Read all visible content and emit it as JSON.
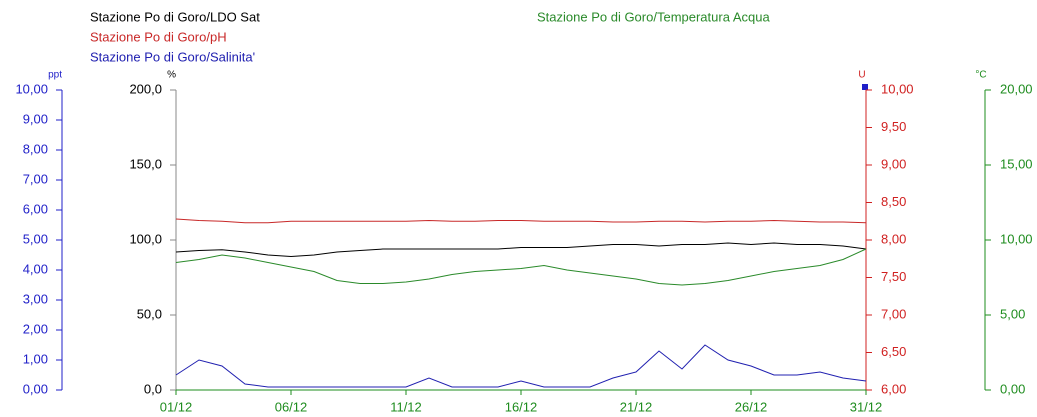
{
  "chart_data": {
    "type": "line",
    "x": [
      1,
      2,
      3,
      4,
      5,
      6,
      7,
      8,
      9,
      10,
      11,
      12,
      13,
      14,
      15,
      16,
      17,
      18,
      19,
      20,
      21,
      22,
      23,
      24,
      25,
      26,
      27,
      28,
      29,
      30,
      31
    ],
    "xlim": [
      1,
      31
    ],
    "xticks": [
      {
        "value": 1,
        "label": "01/12"
      },
      {
        "value": 6,
        "label": "06/12"
      },
      {
        "value": 11,
        "label": "11/12"
      },
      {
        "value": 16,
        "label": "16/12"
      },
      {
        "value": 21,
        "label": "21/12"
      },
      {
        "value": 26,
        "label": "26/12"
      },
      {
        "value": 31,
        "label": "31/12"
      }
    ],
    "axes": [
      {
        "id": "sal",
        "unit": "ppt",
        "color": "#1f1fc8",
        "lim": [
          0,
          10
        ],
        "ticks": [
          {
            "value": 0,
            "label": "0,00"
          },
          {
            "value": 1,
            "label": "1,00"
          },
          {
            "value": 2,
            "label": "2,00"
          },
          {
            "value": 3,
            "label": "3,00"
          },
          {
            "value": 4,
            "label": "4,00"
          },
          {
            "value": 5,
            "label": "5,00"
          },
          {
            "value": 6,
            "label": "6,00"
          },
          {
            "value": 7,
            "label": "7,00"
          },
          {
            "value": 8,
            "label": "8,00"
          },
          {
            "value": 9,
            "label": "9,00"
          },
          {
            "value": 10,
            "label": "10,00"
          }
        ]
      },
      {
        "id": "ldo",
        "unit": "%",
        "color": "#000000",
        "lim": [
          0,
          200
        ],
        "ticks": [
          {
            "value": 0,
            "label": "0,0"
          },
          {
            "value": 50,
            "label": "50,0"
          },
          {
            "value": 100,
            "label": "100,0"
          },
          {
            "value": 150,
            "label": "150,0"
          },
          {
            "value": 200,
            "label": "200,0"
          }
        ]
      },
      {
        "id": "ph",
        "unit": "U",
        "color": "#d02020",
        "lim": [
          6,
          10
        ],
        "ticks": [
          {
            "value": 6,
            "label": "6,00"
          },
          {
            "value": 6.5,
            "label": "6,50"
          },
          {
            "value": 7,
            "label": "7,00"
          },
          {
            "value": 7.5,
            "label": "7,50"
          },
          {
            "value": 8,
            "label": "8,00"
          },
          {
            "value": 8.5,
            "label": "8,50"
          },
          {
            "value": 9,
            "label": "9,00"
          },
          {
            "value": 9.5,
            "label": "9,50"
          },
          {
            "value": 10,
            "label": "10,00"
          }
        ]
      },
      {
        "id": "temp",
        "unit": "°C",
        "color": "#1e8c1e",
        "lim": [
          0,
          20
        ],
        "ticks": [
          {
            "value": 0,
            "label": "0,00"
          },
          {
            "value": 5,
            "label": "5,00"
          },
          {
            "value": 10,
            "label": "10,00"
          },
          {
            "value": 15,
            "label": "15,00"
          },
          {
            "value": 20,
            "label": "20,00"
          }
        ]
      }
    ],
    "series": [
      {
        "name": "Stazione Po di Goro/LDO Sat",
        "color": "#000000",
        "axis": "ldo",
        "values": [
          92,
          93,
          93.5,
          92,
          90,
          89,
          90,
          92,
          93,
          94,
          94,
          94,
          94,
          94,
          94,
          95,
          95,
          95,
          96,
          97,
          97,
          96,
          97,
          97,
          98,
          97,
          98,
          97,
          97,
          96,
          94
        ]
      },
      {
        "name": "Stazione Po di Goro/pH",
        "color": "#c82828",
        "axis": "ph",
        "values": [
          8.28,
          8.26,
          8.25,
          8.23,
          8.23,
          8.25,
          8.25,
          8.25,
          8.25,
          8.25,
          8.25,
          8.26,
          8.25,
          8.25,
          8.26,
          8.26,
          8.25,
          8.25,
          8.25,
          8.24,
          8.24,
          8.25,
          8.25,
          8.24,
          8.25,
          8.25,
          8.26,
          8.25,
          8.24,
          8.24,
          8.23
        ]
      },
      {
        "name": "Stazione Po di Goro/Salinita'",
        "color": "#2020b0",
        "axis": "sal",
        "values": [
          0.5,
          1.0,
          0.8,
          0.2,
          0.1,
          0.1,
          0.1,
          0.1,
          0.1,
          0.1,
          0.1,
          0.4,
          0.1,
          0.1,
          0.1,
          0.3,
          0.1,
          0.1,
          0.1,
          0.4,
          0.6,
          1.3,
          0.7,
          1.5,
          1.0,
          0.8,
          0.5,
          0.5,
          0.6,
          0.4,
          0.3
        ]
      },
      {
        "name": "Stazione Po di Goro/Temperatura Acqua",
        "color": "#2a8a2a",
        "axis": "temp",
        "values": [
          8.5,
          8.7,
          9.0,
          8.8,
          8.5,
          8.2,
          7.9,
          7.3,
          7.1,
          7.1,
          7.2,
          7.4,
          7.7,
          7.9,
          8.0,
          8.1,
          8.3,
          8.0,
          7.8,
          7.6,
          7.4,
          7.1,
          7.0,
          7.1,
          7.3,
          7.6,
          7.9,
          8.1,
          8.3,
          8.7,
          9.4
        ]
      }
    ]
  }
}
